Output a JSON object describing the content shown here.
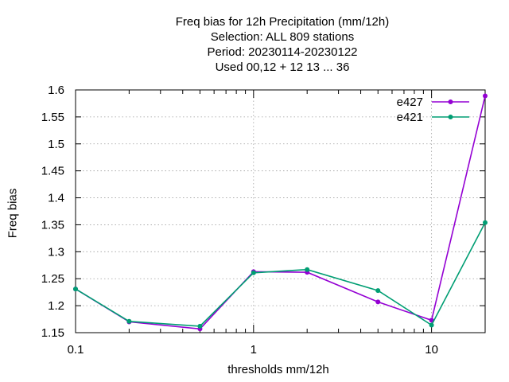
{
  "chart_data": {
    "type": "line",
    "title_lines": [
      "Freq bias  for 12h Precipitation (mm/12h)",
      "Selection: ALL     809 stations",
      "Period: 20230114-20230122",
      "Used  00,12  + 12 13 ... 36"
    ],
    "xlabel": "thresholds mm/12h",
    "ylabel": "Freq bias",
    "x_scale": "log",
    "xlim": [
      0.1,
      20
    ],
    "ylim": [
      1.15,
      1.6
    ],
    "x_ticks": [
      0.1,
      1,
      10
    ],
    "x_tick_labels": [
      "0.1",
      "1",
      "10"
    ],
    "y_ticks": [
      1.15,
      1.2,
      1.25,
      1.3,
      1.35,
      1.4,
      1.45,
      1.5,
      1.55,
      1.6
    ],
    "y_tick_labels": [
      "1.15",
      "1.2",
      "1.25",
      "1.3",
      "1.35",
      "1.4",
      "1.45",
      "1.5",
      "1.55",
      "1.6"
    ],
    "grid": true,
    "legend_position": "top-right",
    "x": [
      0.1,
      0.2,
      0.5,
      1,
      2,
      5,
      10,
      20
    ],
    "series": [
      {
        "name": "e427",
        "color": "#9400d3",
        "values": [
          1.231,
          1.17,
          1.157,
          1.263,
          1.262,
          1.207,
          1.173,
          1.589
        ]
      },
      {
        "name": "e421",
        "color": "#009e73",
        "values": [
          1.231,
          1.171,
          1.162,
          1.261,
          1.267,
          1.228,
          1.164,
          1.354
        ]
      }
    ]
  }
}
